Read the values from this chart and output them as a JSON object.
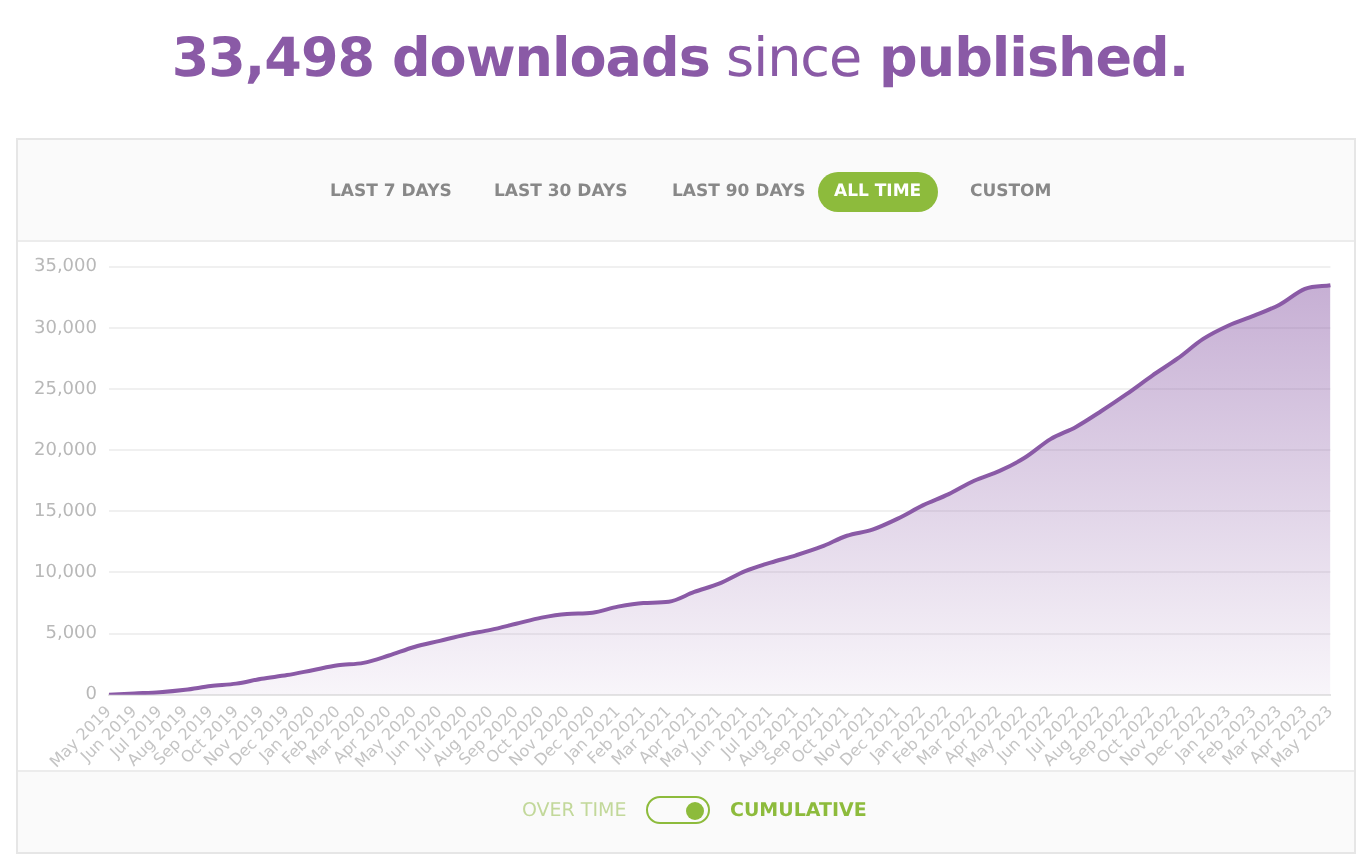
{
  "chart_data": {
    "type": "area",
    "title": "33,498 downloads since published.",
    "annotations": [
      "LAST 7 DAYS",
      "LAST 30 DAYS",
      "LAST 90 DAYS",
      "ALL TIME",
      "CUSTOM",
      "OVER TIME",
      "CUMULATIVE"
    ],
    "categories": [
      "May 2019",
      "Jun 2019",
      "Jul 2019",
      "Aug 2019",
      "Sep 2019",
      "Oct 2019",
      "Nov 2019",
      "Dec 2019",
      "Jan 2020",
      "Feb 2020",
      "Mar 2020",
      "Apr 2020",
      "May 2020",
      "Jun 2020",
      "Jul 2020",
      "Aug 2020",
      "Sep 2020",
      "Oct 2020",
      "Nov 2020",
      "Dec 2020",
      "Jan 2021",
      "Feb 2021",
      "Mar 2021",
      "Apr 2021",
      "May 2021",
      "Jun 2021",
      "Jul 2021",
      "Aug 2021",
      "Sep 2021",
      "Oct 2021",
      "Nov 2021",
      "Dec 2021",
      "Jan 2022",
      "Feb 2022",
      "Mar 2022",
      "Apr 2022",
      "May 2022",
      "Jun 2022",
      "Jul 2022",
      "Aug 2022",
      "Sep 2022",
      "Oct 2022",
      "Nov 2022",
      "Dec 2022",
      "Jan 2023",
      "Feb 2023",
      "Mar 2023",
      "Apr 2023",
      "May 2023"
    ],
    "series": [
      {
        "color": "#8a5aa6",
        "values": [
          0,
          100,
          200,
          400,
          700,
          900,
          1300,
          1600,
          2000,
          2400,
          2600,
          3200,
          3900,
          4400,
          4900,
          5300,
          5800,
          6300,
          6600,
          6700,
          7200,
          7500,
          7600,
          8400,
          9100,
          10100,
          10800,
          11400,
          12100,
          13000,
          13500,
          14400,
          15500,
          16400,
          17500,
          18300,
          19400,
          20900,
          21900,
          23200,
          24600,
          26100,
          27500,
          29100,
          30200,
          31000,
          31900,
          33200,
          33498
        ]
      }
    ],
    "ylim": [
      0,
      35000
    ],
    "yticks": [
      0,
      {
        "value": 5000,
        "label": "5,000"
      },
      {
        "value": 10000,
        "label": "10,000"
      },
      {
        "value": 15000,
        "label": "15,000"
      },
      {
        "value": 20000,
        "label": "20,000"
      },
      {
        "value": 25000,
        "label": "25,000"
      },
      {
        "value": 30000,
        "label": "30,000"
      },
      {
        "value": 35000,
        "label": "35,000"
      }
    ],
    "grid": "y",
    "legend": false,
    "marker": "none"
  }
}
